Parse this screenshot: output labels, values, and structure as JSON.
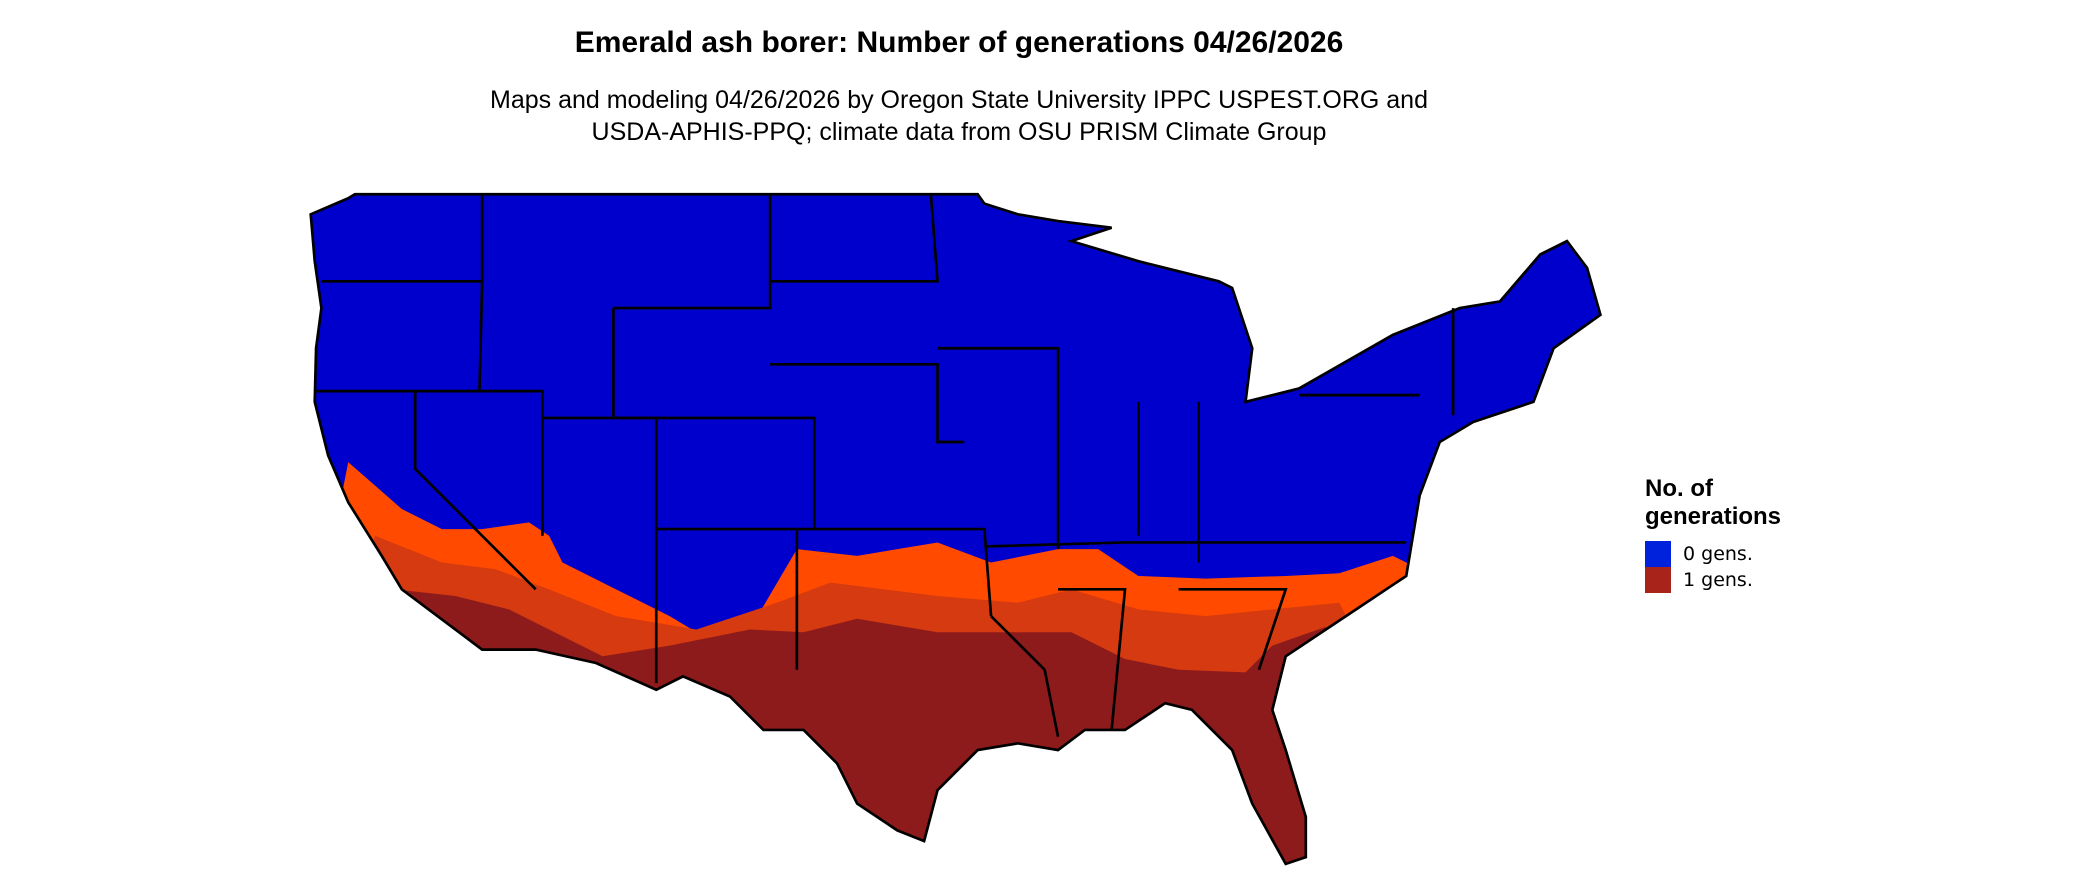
{
  "title": "Emerald ash borer: Number of generations 04/26/2026",
  "subtitle_line1": "Maps and modeling 04/26/2026 by Oregon State University IPPC USPEST.ORG and",
  "subtitle_line2": "USDA-APHIS-PPQ; climate data from OSU PRISM Climate Group",
  "legend": {
    "title_line1": "No. of",
    "title_line2": "generations",
    "items": [
      {
        "label": "0 gens.",
        "color": "#0022dd"
      },
      {
        "label": "1 gens.",
        "color": "#a8241a"
      }
    ]
  },
  "map_colors": {
    "zero_generations_fill": "#0000cc",
    "partial_development_orange": "#ff4a00",
    "mid_development": "#d53a10",
    "one_generation_fill": "#8e1b1b",
    "state_borders": "#000000"
  }
}
